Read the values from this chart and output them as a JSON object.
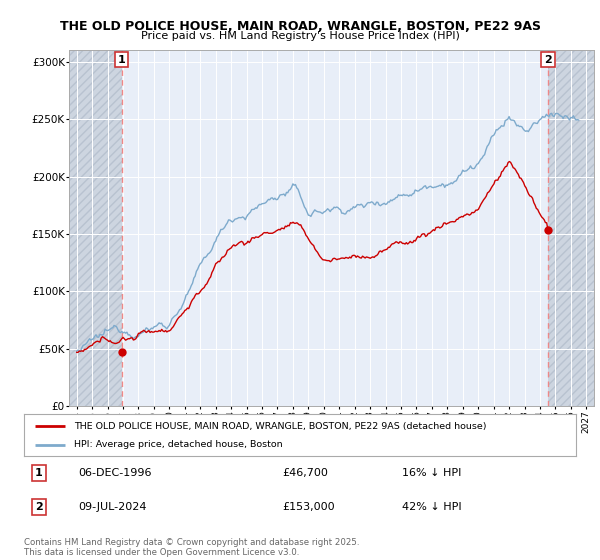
{
  "title_line1": "THE OLD POLICE HOUSE, MAIN ROAD, WRANGLE, BOSTON, PE22 9AS",
  "title_line2": "Price paid vs. HM Land Registry's House Price Index (HPI)",
  "ylim": [
    0,
    310000
  ],
  "yticks": [
    0,
    50000,
    100000,
    150000,
    200000,
    250000,
    300000
  ],
  "ytick_labels": [
    "£0",
    "£50K",
    "£100K",
    "£150K",
    "£200K",
    "£250K",
    "£300K"
  ],
  "background_color": "#ffffff",
  "plot_bg_color": "#e8eef8",
  "grid_color": "#ffffff",
  "hatch_bg_color": "#d8dfe8",
  "sale1_date_num": 1996.92,
  "sale1_price": 46700,
  "sale2_date_num": 2024.52,
  "sale2_price": 153000,
  "sale1_date_str": "06-DEC-1996",
  "sale1_price_str": "£46,700",
  "sale1_hpi_str": "16% ↓ HPI",
  "sale2_date_str": "09-JUL-2024",
  "sale2_price_str": "£153,000",
  "sale2_hpi_str": "42% ↓ HPI",
  "red_line_color": "#cc0000",
  "blue_line_color": "#7eaacc",
  "dashed_line_color": "#ee8888",
  "legend_label_red": "THE OLD POLICE HOUSE, MAIN ROAD, WRANGLE, BOSTON, PE22 9AS (detached house)",
  "legend_label_blue": "HPI: Average price, detached house, Boston",
  "footer_text": "Contains HM Land Registry data © Crown copyright and database right 2025.\nThis data is licensed under the Open Government Licence v3.0.",
  "xmin": 1993.5,
  "xmax": 2027.5
}
